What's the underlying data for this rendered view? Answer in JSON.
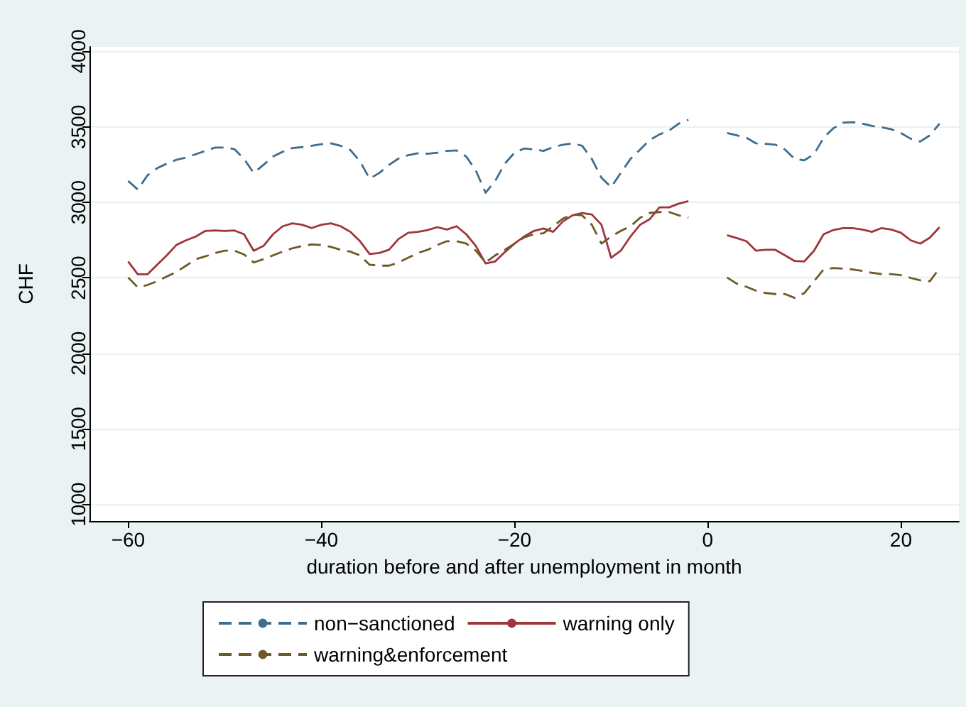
{
  "chart_data": {
    "type": "line",
    "xlabel": "duration before and after unemployment in month",
    "ylabel": "CHF",
    "x": [
      -60,
      -59,
      -58,
      -57,
      -56,
      -55,
      -54,
      -53,
      -52,
      -51,
      -50,
      -49,
      -48,
      -47,
      -46,
      -45,
      -44,
      -43,
      -42,
      -41,
      -40,
      -39,
      -38,
      -37,
      -36,
      -35,
      -34,
      -33,
      -32,
      -31,
      -30,
      -29,
      -28,
      -27,
      -26,
      -25,
      -24,
      -23,
      -22,
      -21,
      -20,
      -19,
      -18,
      -17,
      -16,
      -15,
      -14,
      -13,
      -12,
      -11,
      -10,
      -9,
      -8,
      -7,
      -6,
      -5,
      -4,
      -3,
      -2,
      -1,
      0,
      1,
      2,
      3,
      4,
      5,
      6,
      7,
      8,
      9,
      10,
      11,
      12,
      13,
      14,
      15,
      16,
      17,
      18,
      19,
      20,
      21,
      22,
      23,
      24
    ],
    "series": [
      {
        "name": "non−sanctioned",
        "color": "#3e6d8e",
        "line_style": "dashed",
        "values": [
          3142,
          3085,
          3179,
          3226,
          3257,
          3282,
          3297,
          3319,
          3341,
          3363,
          3363,
          3353,
          3288,
          3195,
          3248,
          3304,
          3335,
          3360,
          3366,
          3375,
          3385,
          3391,
          3375,
          3347,
          3272,
          3157,
          3195,
          3248,
          3291,
          3313,
          3325,
          3322,
          3329,
          3341,
          3344,
          3304,
          3210,
          3064,
          3142,
          3257,
          3329,
          3357,
          3350,
          3341,
          3366,
          3382,
          3391,
          3375,
          3288,
          3163,
          3101,
          3195,
          3288,
          3350,
          3413,
          3450,
          3475,
          3522,
          3547,
          null,
          null,
          null,
          3459,
          3444,
          3428,
          3391,
          3388,
          3382,
          3350,
          3288,
          3279,
          3319,
          3428,
          3491,
          3528,
          3531,
          3522,
          3506,
          3497,
          3484,
          3459,
          3422,
          3403,
          3444,
          3522
        ]
      },
      {
        "name": "warning only",
        "color": "#a0353b",
        "line_style": "solid",
        "values": [
          2609,
          2524,
          2524,
          2587,
          2649,
          2718,
          2749,
          2774,
          2811,
          2814,
          2811,
          2814,
          2789,
          2680,
          2711,
          2789,
          2842,
          2861,
          2852,
          2830,
          2852,
          2861,
          2842,
          2805,
          2743,
          2658,
          2665,
          2686,
          2758,
          2799,
          2805,
          2817,
          2836,
          2820,
          2842,
          2789,
          2711,
          2596,
          2609,
          2671,
          2727,
          2774,
          2811,
          2827,
          2805,
          2873,
          2914,
          2930,
          2920,
          2852,
          2633,
          2680,
          2774,
          2852,
          2889,
          2967,
          2967,
          2992,
          3008,
          null,
          null,
          null,
          2783,
          2764,
          2743,
          2680,
          2686,
          2686,
          2649,
          2612,
          2609,
          2680,
          2789,
          2817,
          2830,
          2830,
          2820,
          2805,
          2830,
          2820,
          2799,
          2749,
          2727,
          2767,
          2836
        ]
      },
      {
        "name": "warning&enforcement",
        "color": "#6e5a26",
        "line_style": "dashed",
        "values": [
          2503,
          2437,
          2453,
          2478,
          2509,
          2540,
          2581,
          2624,
          2643,
          2665,
          2680,
          2680,
          2655,
          2602,
          2624,
          2649,
          2674,
          2696,
          2711,
          2721,
          2718,
          2705,
          2686,
          2674,
          2649,
          2587,
          2581,
          2581,
          2602,
          2634,
          2665,
          2686,
          2718,
          2743,
          2743,
          2727,
          2680,
          2602,
          2649,
          2686,
          2727,
          2768,
          2789,
          2796,
          2842,
          2892,
          2920,
          2914,
          2852,
          2727,
          2774,
          2811,
          2842,
          2898,
          2930,
          2936,
          2936,
          2914,
          2899,
          null,
          null,
          null,
          2503,
          2462,
          2441,
          2415,
          2400,
          2393,
          2393,
          2368,
          2400,
          2478,
          2556,
          2565,
          2562,
          2556,
          2546,
          2534,
          2525,
          2525,
          2518,
          2500,
          2484,
          2478,
          2565
        ]
      }
    ],
    "xlim": [
      -64,
      26
    ],
    "xticks": [
      -60,
      -40,
      -20,
      0,
      20
    ],
    "ylim": [
      890,
      4030
    ],
    "yticks": [
      1000,
      1500,
      2000,
      2500,
      3000,
      3500,
      4000
    ],
    "grid": "y",
    "legend": "bottom",
    "marker": "none"
  }
}
